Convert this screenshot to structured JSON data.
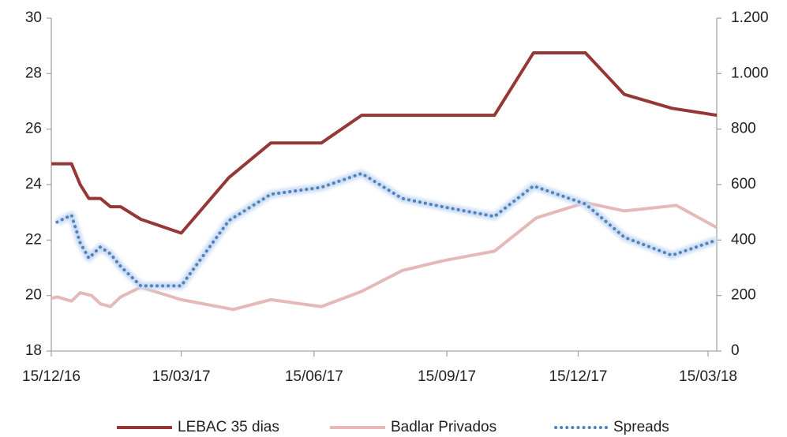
{
  "chart_data": {
    "type": "line",
    "xlim": [
      "15/12/16",
      "21/03/18"
    ],
    "xticks": [
      "15/12/16",
      "15/03/17",
      "15/06/17",
      "15/09/17",
      "15/12/17",
      "15/03/18"
    ],
    "ylim": [
      18,
      30
    ],
    "yticks": [
      18,
      20,
      22,
      24,
      26,
      28,
      30
    ],
    "y2lim": [
      0,
      1200
    ],
    "y2ticks": [
      0,
      200,
      400,
      600,
      800,
      {
        "value": 1000,
        "label": "1.000"
      },
      {
        "value": 1200,
        "label": "1.200"
      }
    ],
    "grid": false,
    "legend": "bottom",
    "series": [
      {
        "name": "LEBAC 35 dias",
        "color": "#953735",
        "style": "solid",
        "x": [
          "15/12/16",
          "29/12/16",
          "04/01/17",
          "10/01/17",
          "18/01/17",
          "25/01/17",
          "01/02/17",
          "15/02/17",
          "15/03/17",
          "17/04/17",
          "16/05/17",
          "20/06/17",
          "18/07/17",
          "18/10/17",
          "14/11/17",
          "20/12/17",
          "16/01/18",
          "18/02/18",
          "21/03/18"
        ],
        "values": [
          24.75,
          24.75,
          24.0,
          23.5,
          23.5,
          23.2,
          23.2,
          22.75,
          22.25,
          24.25,
          25.5,
          25.5,
          26.5,
          26.5,
          28.75,
          28.75,
          27.25,
          26.75,
          26.5
        ]
      },
      {
        "name": "Badlar Privados",
        "color": "#e6b9b8",
        "style": "solid",
        "x": [
          "15/12/16",
          "19/12/16",
          "29/12/16",
          "04/01/17",
          "12/01/17",
          "18/01/17",
          "25/01/17",
          "01/02/17",
          "15/02/17",
          "15/03/17",
          "20/04/17",
          "16/05/17",
          "20/06/17",
          "18/07/17",
          "15/08/17",
          "12/09/17",
          "18/10/17",
          "16/11/17",
          "20/12/17",
          "16/01/18",
          "21/02/18",
          "21/03/18"
        ],
        "values": [
          19.9,
          19.95,
          19.8,
          20.1,
          20.0,
          19.7,
          19.6,
          19.95,
          20.3,
          19.85,
          19.5,
          19.85,
          19.6,
          20.15,
          20.9,
          21.25,
          21.6,
          22.8,
          23.35,
          23.05,
          23.25,
          22.45
        ]
      },
      {
        "name": "Spreads",
        "color": "#4f81bd",
        "style": "dotted",
        "axis": "y2",
        "x": [
          "19/12/16",
          "29/12/16",
          "04/01/17",
          "10/01/17",
          "18/01/17",
          "25/01/17",
          "01/02/17",
          "15/02/17",
          "15/03/17",
          "17/04/17",
          "16/05/17",
          "20/06/17",
          "18/07/17",
          "15/08/17",
          "12/09/17",
          "18/10/17",
          "14/11/17",
          "20/12/17",
          "16/01/18",
          "18/02/18",
          "21/03/18"
        ],
        "values": [
          465,
          490,
          390,
          335,
          375,
          350,
          305,
          235,
          235,
          470,
          565,
          590,
          640,
          550,
          520,
          485,
          595,
          530,
          410,
          345,
          400
        ]
      }
    ]
  }
}
